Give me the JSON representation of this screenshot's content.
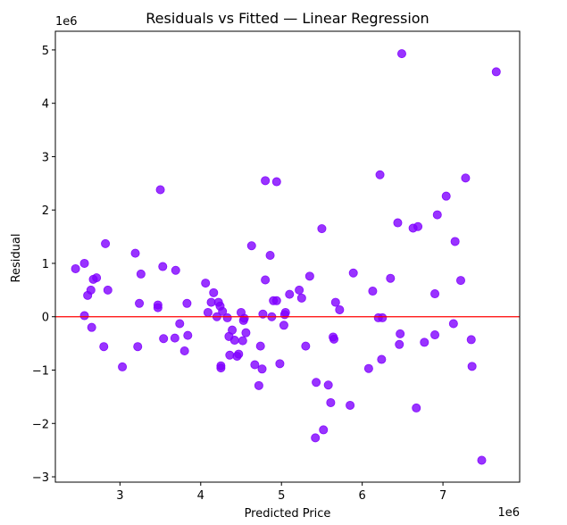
{
  "chart_data": {
    "type": "scatter",
    "title": "Residuals vs Fitted — Linear Regression",
    "xlabel": "Predicted Price",
    "ylabel": "Residual",
    "x_multiplier_label": "1e6",
    "y_multiplier_label": "1e6",
    "xlim": [
      2.2,
      7.95
    ],
    "ylim": [
      -3.1,
      5.35
    ],
    "x_ticks": [
      3,
      4,
      5,
      6,
      7
    ],
    "y_ticks": [
      -3,
      -2,
      -1,
      0,
      1,
      2,
      3,
      4,
      5
    ],
    "x_tick_labels": [
      "3",
      "4",
      "5",
      "6",
      "7"
    ],
    "y_tick_labels": [
      "−3",
      "−2",
      "−1",
      "0",
      "1",
      "2",
      "3",
      "4",
      "5"
    ],
    "grid": false,
    "point_color": "#7f00ff",
    "reference_line": {
      "y": 0,
      "color": "#ff0000"
    },
    "points": [
      [
        2.45,
        0.9
      ],
      [
        2.56,
        0.02
      ],
      [
        2.56,
        1.0
      ],
      [
        2.6,
        0.4
      ],
      [
        2.64,
        0.5
      ],
      [
        2.65,
        -0.2
      ],
      [
        2.67,
        0.7
      ],
      [
        2.71,
        0.73
      ],
      [
        2.8,
        -0.56
      ],
      [
        2.82,
        1.37
      ],
      [
        2.85,
        0.5
      ],
      [
        3.03,
        -0.94
      ],
      [
        3.19,
        1.19
      ],
      [
        3.22,
        -0.56
      ],
      [
        3.24,
        0.25
      ],
      [
        3.26,
        0.8
      ],
      [
        3.47,
        0.22
      ],
      [
        3.47,
        0.17
      ],
      [
        3.5,
        2.38
      ],
      [
        3.53,
        0.94
      ],
      [
        3.54,
        -0.41
      ],
      [
        3.68,
        -0.4
      ],
      [
        3.69,
        0.87
      ],
      [
        3.74,
        -0.13
      ],
      [
        3.8,
        -0.64
      ],
      [
        3.83,
        0.25
      ],
      [
        3.84,
        -0.35
      ],
      [
        4.06,
        0.63
      ],
      [
        4.09,
        0.08
      ],
      [
        4.13,
        0.27
      ],
      [
        4.16,
        0.45
      ],
      [
        4.2,
        0.0
      ],
      [
        4.22,
        0.27
      ],
      [
        4.24,
        0.2
      ],
      [
        4.25,
        -0.92
      ],
      [
        4.25,
        -0.96
      ],
      [
        4.27,
        0.1
      ],
      [
        4.33,
        -0.02
      ],
      [
        4.35,
        -0.37
      ],
      [
        4.36,
        -0.72
      ],
      [
        4.39,
        -0.25
      ],
      [
        4.42,
        -0.44
      ],
      [
        4.45,
        -0.74
      ],
      [
        4.47,
        -0.7
      ],
      [
        4.5,
        0.08
      ],
      [
        4.52,
        -0.45
      ],
      [
        4.53,
        -0.07
      ],
      [
        4.54,
        -0.03
      ],
      [
        4.56,
        -0.3
      ],
      [
        4.63,
        1.33
      ],
      [
        4.67,
        -0.9
      ],
      [
        4.72,
        -1.29
      ],
      [
        4.74,
        -0.55
      ],
      [
        4.76,
        -0.98
      ],
      [
        4.77,
        0.05
      ],
      [
        4.8,
        0.69
      ],
      [
        4.8,
        2.55
      ],
      [
        4.86,
        1.15
      ],
      [
        4.88,
        0.0
      ],
      [
        4.9,
        0.3
      ],
      [
        4.94,
        2.53
      ],
      [
        4.94,
        0.3
      ],
      [
        4.98,
        -0.88
      ],
      [
        5.03,
        -0.16
      ],
      [
        5.04,
        0.04
      ],
      [
        5.05,
        0.08
      ],
      [
        5.1,
        0.42
      ],
      [
        5.22,
        0.5
      ],
      [
        5.25,
        0.35
      ],
      [
        5.3,
        -0.55
      ],
      [
        5.35,
        0.76
      ],
      [
        5.42,
        -2.27
      ],
      [
        5.43,
        -1.23
      ],
      [
        5.5,
        1.65
      ],
      [
        5.52,
        -2.12
      ],
      [
        5.58,
        -1.28
      ],
      [
        5.61,
        -1.61
      ],
      [
        5.64,
        -0.38
      ],
      [
        5.65,
        -0.42
      ],
      [
        5.67,
        0.27
      ],
      [
        5.72,
        0.13
      ],
      [
        5.85,
        -1.66
      ],
      [
        5.89,
        0.82
      ],
      [
        6.08,
        -0.97
      ],
      [
        6.13,
        0.48
      ],
      [
        6.2,
        -0.02
      ],
      [
        6.22,
        2.66
      ],
      [
        6.24,
        -0.8
      ],
      [
        6.25,
        -0.02
      ],
      [
        6.35,
        0.72
      ],
      [
        6.44,
        1.76
      ],
      [
        6.46,
        -0.52
      ],
      [
        6.47,
        -0.32
      ],
      [
        6.49,
        4.93
      ],
      [
        6.63,
        1.66
      ],
      [
        6.67,
        -1.71
      ],
      [
        6.69,
        1.69
      ],
      [
        6.77,
        -0.48
      ],
      [
        6.9,
        0.43
      ],
      [
        6.9,
        -0.34
      ],
      [
        6.93,
        1.91
      ],
      [
        7.04,
        2.26
      ],
      [
        7.13,
        -0.13
      ],
      [
        7.15,
        1.41
      ],
      [
        7.22,
        0.68
      ],
      [
        7.28,
        2.6
      ],
      [
        7.35,
        -0.43
      ],
      [
        7.36,
        -0.93
      ],
      [
        7.48,
        -2.69
      ],
      [
        7.66,
        4.59
      ]
    ]
  }
}
